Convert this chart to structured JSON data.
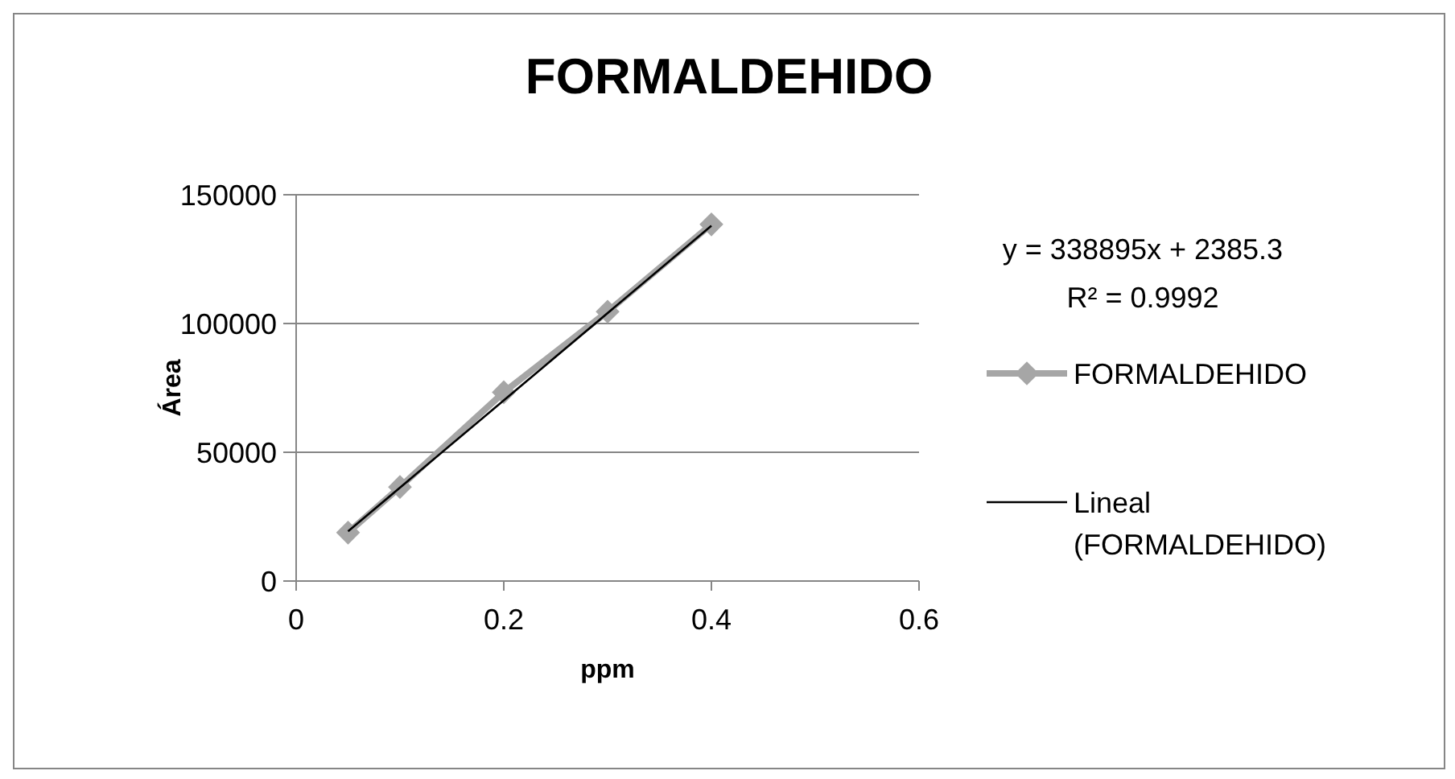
{
  "chart_data": {
    "type": "line",
    "title": "FORMALDEHIDO",
    "xlabel": "ppm",
    "ylabel": "Área",
    "xlim": [
      0,
      0.6
    ],
    "xticks": [
      0,
      0.2,
      0.4,
      0.6
    ],
    "ylim": [
      0,
      150000
    ],
    "yticks": [
      0,
      50000,
      100000,
      150000
    ],
    "grid": "y",
    "legend": "right",
    "series": [
      {
        "name": "FORMALDEHIDO",
        "color": "#a6a6a6",
        "marker": "diamond",
        "x": [
          0.05,
          0.1,
          0.2,
          0.3,
          0.4
        ],
        "values": [
          18800,
          36500,
          73300,
          104600,
          138500
        ]
      },
      {
        "name": "Lineal (FORMALDEHIDO)",
        "color": "#000000",
        "marker": "none",
        "x": [
          0.05,
          0.4
        ],
        "values": [
          19330,
          137943
        ]
      }
    ],
    "annotations": [
      "y = 338895x + 2385.3",
      "R² = 0.9992"
    ]
  }
}
